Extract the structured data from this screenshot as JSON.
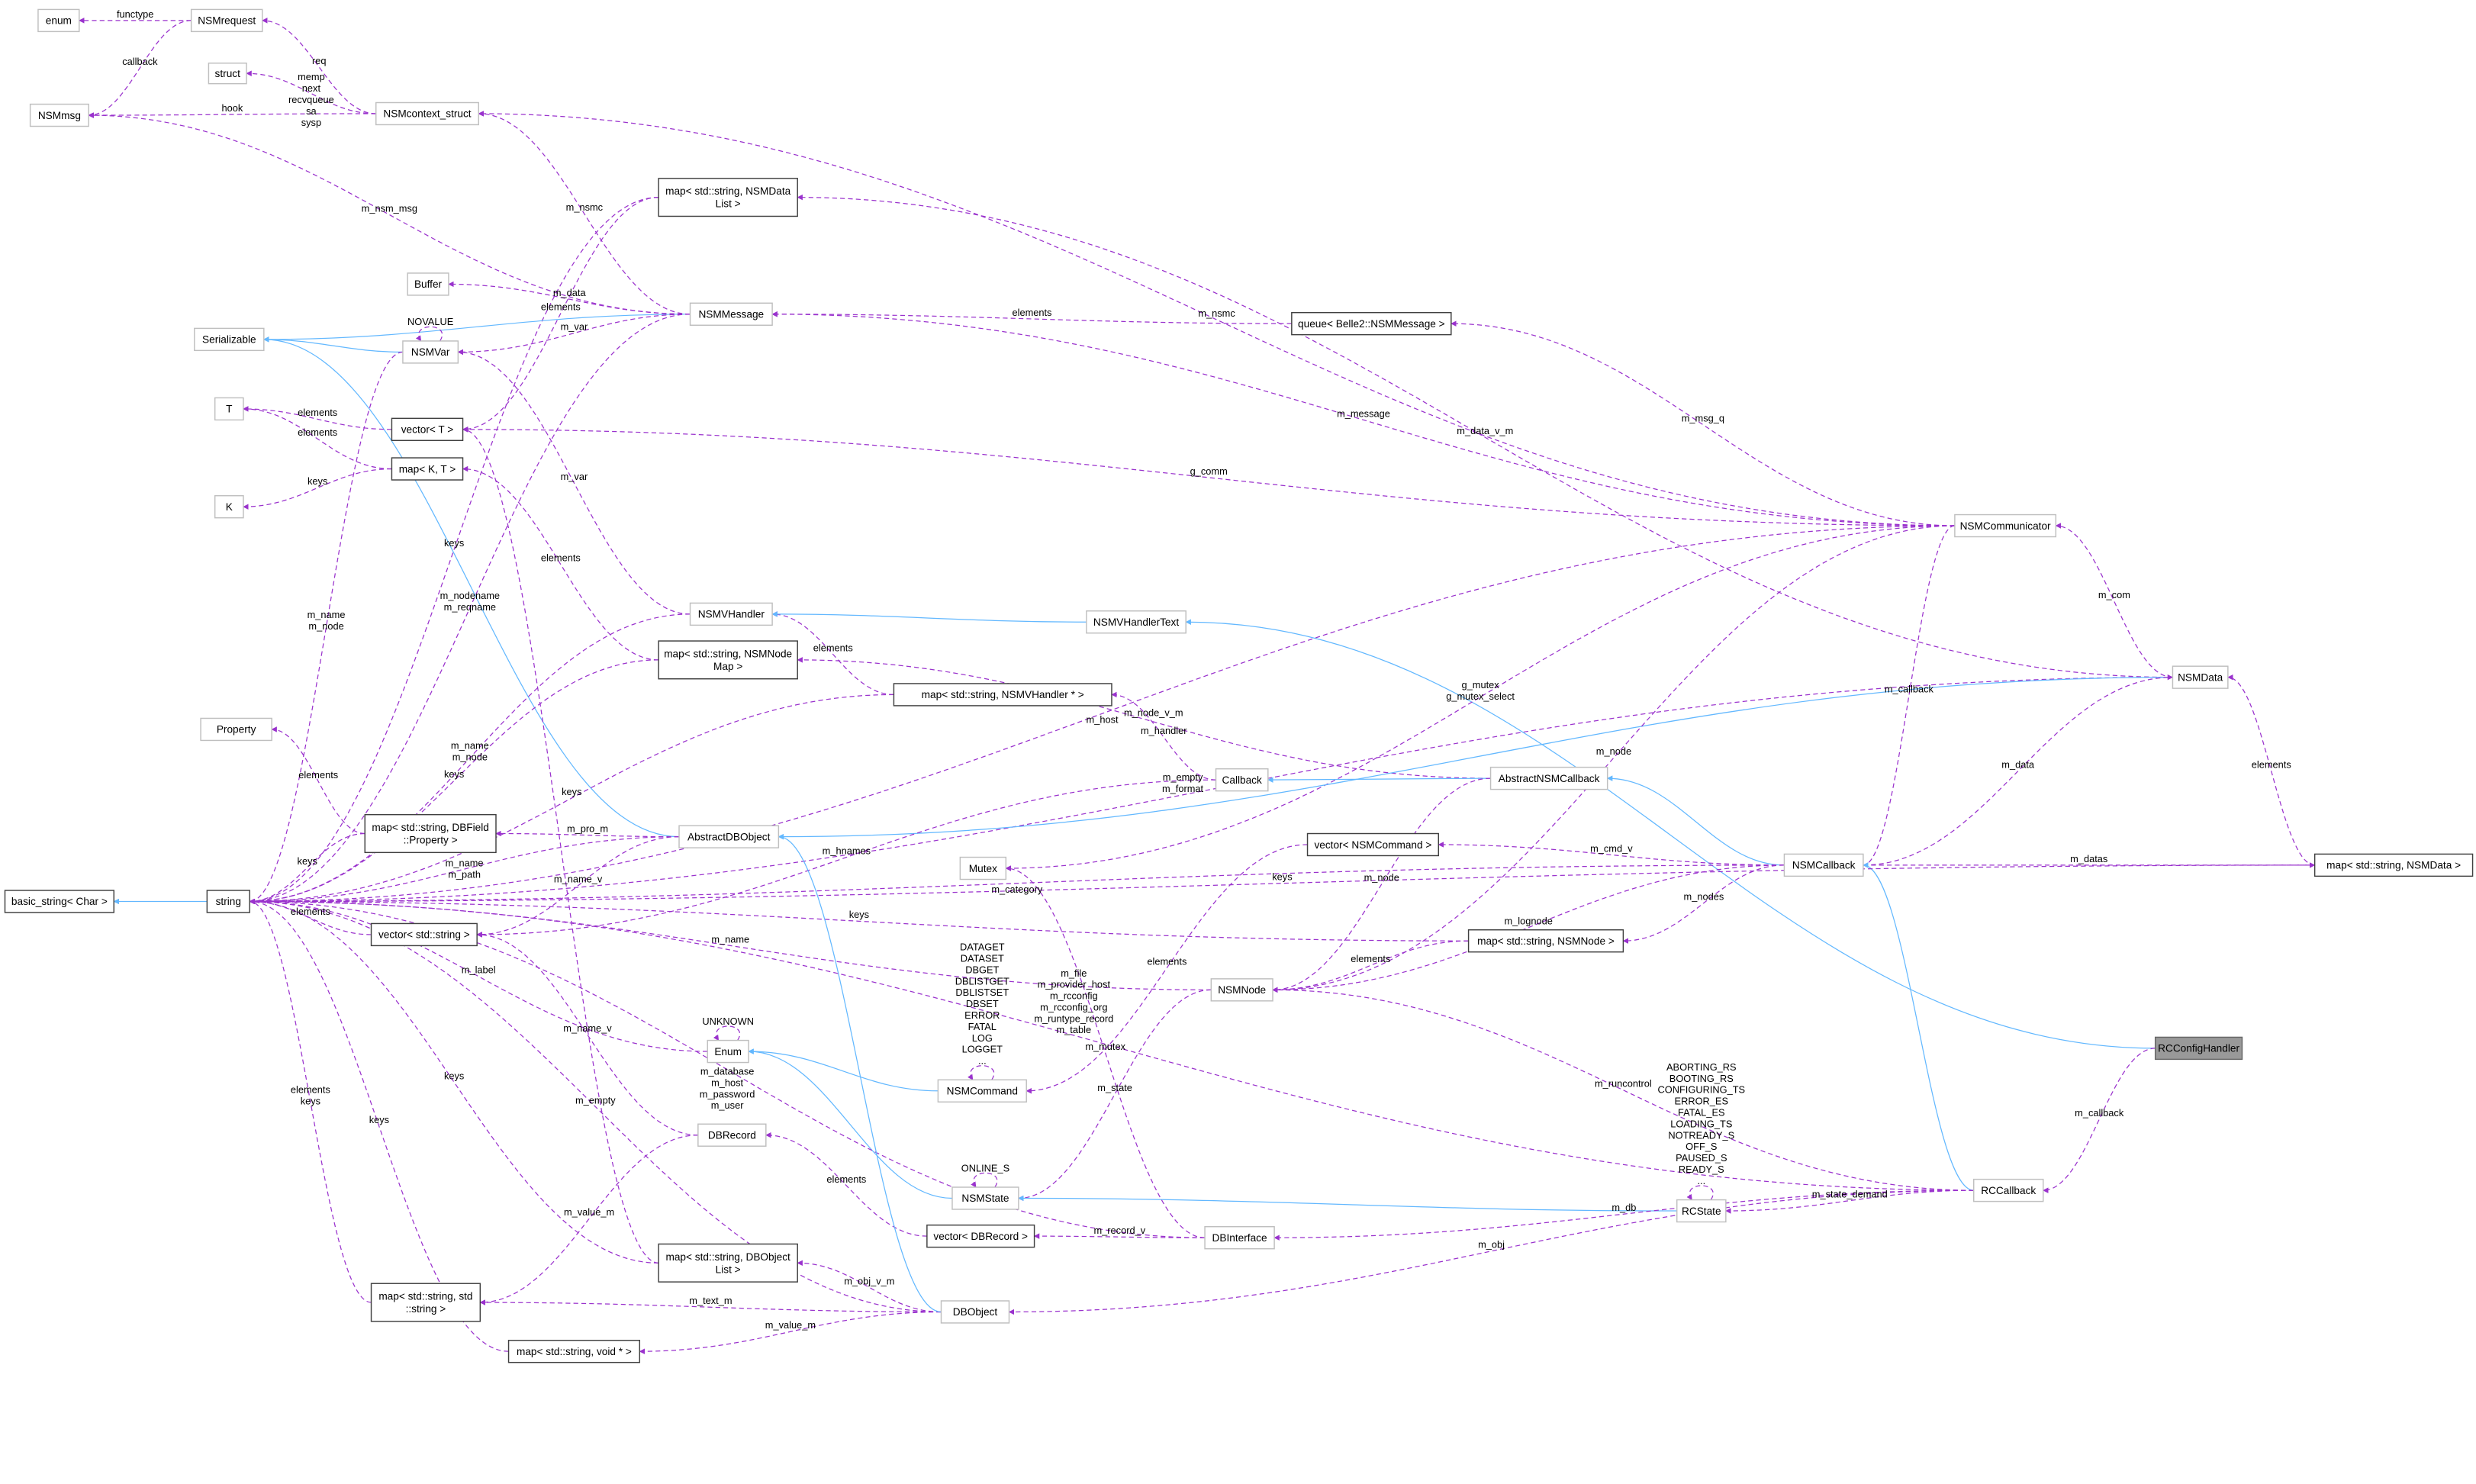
{
  "colors": {
    "usage": "#9a32cd",
    "inheritance": "#63b8ff",
    "root_fill": "#999999"
  },
  "nodes": [
    {
      "id": "enum",
      "label": "enum",
      "style": "gray"
    },
    {
      "id": "NSMrequest",
      "label": "NSMrequest",
      "style": "gray"
    },
    {
      "id": "struct",
      "label": "struct",
      "style": "gray"
    },
    {
      "id": "NSMmsg",
      "label": "NSMmsg",
      "style": "gray"
    },
    {
      "id": "NSMcontext_struct",
      "label": "NSMcontext_struct",
      "style": "gray"
    },
    {
      "id": "mapNSMDataList",
      "label": "map< std::string, NSMData\nList >",
      "style": "dark"
    },
    {
      "id": "Buffer",
      "label": "Buffer",
      "style": "gray"
    },
    {
      "id": "NSMMessage",
      "label": "NSMMessage",
      "style": "gray"
    },
    {
      "id": "Serializable",
      "label": "Serializable",
      "style": "gray"
    },
    {
      "id": "NSMVar",
      "label": "NSMVar",
      "style": "gray"
    },
    {
      "id": "T",
      "label": "T",
      "style": "gray"
    },
    {
      "id": "vectorT",
      "label": "vector< T >",
      "style": "dark"
    },
    {
      "id": "mapKT",
      "label": "map< K, T >",
      "style": "dark"
    },
    {
      "id": "K",
      "label": "K",
      "style": "gray"
    },
    {
      "id": "queue",
      "label": "queue< Belle2::NSMMessage >",
      "style": "dark"
    },
    {
      "id": "NSMCommunicator",
      "label": "NSMCommunicator",
      "style": "gray"
    },
    {
      "id": "NSMVHandler",
      "label": "NSMVHandler",
      "style": "gray"
    },
    {
      "id": "NSMVHandlerText",
      "label": "NSMVHandlerText",
      "style": "gray"
    },
    {
      "id": "mapNSMNodeMap",
      "label": "map< std::string, NSMNode\nMap >",
      "style": "dark"
    },
    {
      "id": "mapNSMVHandler",
      "label": "map< std::string, NSMVHandler * >",
      "style": "dark"
    },
    {
      "id": "Property",
      "label": "Property",
      "style": "gray"
    },
    {
      "id": "NSMData",
      "label": "NSMData",
      "style": "gray"
    },
    {
      "id": "Callback",
      "label": "Callback",
      "style": "gray"
    },
    {
      "id": "AbstractNSMCallback",
      "label": "AbstractNSMCallback",
      "style": "gray"
    },
    {
      "id": "mapDBField",
      "label": "map< std::string, DBField\n::Property >",
      "style": "dark"
    },
    {
      "id": "AbstractDBObject",
      "label": "AbstractDBObject",
      "style": "gray"
    },
    {
      "id": "basic_string",
      "label": "basic_string< Char >",
      "style": "dark"
    },
    {
      "id": "string",
      "label": "string",
      "style": "dark"
    },
    {
      "id": "vectorString",
      "label": "vector< std::string >",
      "style": "dark"
    },
    {
      "id": "vectorNSMCommand",
      "label": "vector< NSMCommand >",
      "style": "dark"
    },
    {
      "id": "Mutex",
      "label": "Mutex",
      "style": "gray"
    },
    {
      "id": "NSMCallback",
      "label": "NSMCallback",
      "style": "gray"
    },
    {
      "id": "mapNSMData",
      "label": "map< std::string, NSMData >",
      "style": "dark"
    },
    {
      "id": "mapNSMNode",
      "label": "map< std::string, NSMNode >",
      "style": "dark"
    },
    {
      "id": "NSMNode",
      "label": "NSMNode",
      "style": "gray"
    },
    {
      "id": "Enum",
      "label": "Enum",
      "style": "gray"
    },
    {
      "id": "NSMCommand",
      "label": "NSMCommand",
      "style": "gray"
    },
    {
      "id": "RCConfigHandler",
      "label": "RCConfigHandler",
      "style": "root"
    },
    {
      "id": "DBRecord",
      "label": "DBRecord",
      "style": "gray"
    },
    {
      "id": "NSMState",
      "label": "NSMState",
      "style": "gray"
    },
    {
      "id": "RCState",
      "label": "RCState",
      "style": "gray"
    },
    {
      "id": "RCCallback",
      "label": "RCCallback",
      "style": "gray"
    },
    {
      "id": "vectorDBRecord",
      "label": "vector< DBRecord >",
      "style": "dark"
    },
    {
      "id": "DBInterface",
      "label": "DBInterface",
      "style": "gray"
    },
    {
      "id": "mapDBObjectList",
      "label": "map< std::string, DBObject\nList >",
      "style": "dark"
    },
    {
      "id": "mapStringString",
      "label": "map< std::string, std\n::string >",
      "style": "dark"
    },
    {
      "id": "DBObject",
      "label": "DBObject",
      "style": "gray"
    },
    {
      "id": "mapVoid",
      "label": "map< std::string, void * >",
      "style": "dark"
    }
  ],
  "edges": [
    {
      "from": "NSMrequest",
      "to": "enum",
      "label": "functype",
      "kind": "usage"
    },
    {
      "from": "NSMrequest",
      "to": "NSMmsg",
      "label": "callback",
      "kind": "usage"
    },
    {
      "from": "NSMcontext_struct",
      "to": "NSMrequest",
      "label": "req",
      "kind": "usage"
    },
    {
      "from": "NSMcontext_struct",
      "to": "struct",
      "label": "memp\nnext\nrecvqueue\nsa\nsysp",
      "kind": "usage"
    },
    {
      "from": "NSMcontext_struct",
      "to": "NSMmsg",
      "label": "hook",
      "kind": "usage"
    },
    {
      "from": "NSMMessage",
      "to": "NSMmsg",
      "label": "m_nsm_msg",
      "kind": "usage"
    },
    {
      "from": "NSMMessage",
      "to": "NSMcontext_struct",
      "label": "m_nsmc",
      "kind": "usage"
    },
    {
      "from": "NSMCommunicator",
      "to": "NSMcontext_struct",
      "label": "m_nsmc",
      "kind": "usage"
    },
    {
      "from": "NSMData",
      "to": "mapNSMDataList",
      "label": "m_data_v_m",
      "kind": "usage"
    },
    {
      "from": "mapNSMDataList",
      "to": "string",
      "label": "keys",
      "kind": "usage"
    },
    {
      "from": "mapNSMDataList",
      "to": "vectorT",
      "label": "elements",
      "kind": "usage"
    },
    {
      "from": "NSMMessage",
      "to": "Serializable",
      "label": "",
      "kind": "inherit"
    },
    {
      "from": "NSMMessage",
      "to": "Buffer",
      "label": "m_data",
      "kind": "usage"
    },
    {
      "from": "NSMMessage",
      "to": "NSMVar",
      "label": "m_var",
      "kind": "usage"
    },
    {
      "from": "NSMVar",
      "to": "NSMVar",
      "label": "NOVALUE",
      "kind": "usage"
    },
    {
      "from": "NSMVar",
      "to": "Serializable",
      "label": "",
      "kind": "inherit"
    },
    {
      "from": "AbstractDBObject",
      "to": "Serializable",
      "label": "",
      "kind": "inherit"
    },
    {
      "from": "queue",
      "to": "NSMMessage",
      "label": "elements",
      "kind": "usage"
    },
    {
      "from": "NSMCommunicator",
      "to": "queue",
      "label": "m_msg_q",
      "kind": "usage"
    },
    {
      "from": "NSMCommunicator",
      "to": "NSMMessage",
      "label": "m_message",
      "kind": "usage"
    },
    {
      "from": "NSMCommunicator",
      "to": "vectorT",
      "label": "g_comm",
      "kind": "usage"
    },
    {
      "from": "vectorT",
      "to": "T",
      "label": "elements",
      "kind": "usage"
    },
    {
      "from": "mapKT",
      "to": "T",
      "label": "elements",
      "kind": "usage"
    },
    {
      "from": "mapKT",
      "to": "K",
      "label": "keys",
      "kind": "usage"
    },
    {
      "from": "NSMVar",
      "to": "string",
      "label": "m_name\nm_node",
      "kind": "usage"
    },
    {
      "from": "NSMMessage",
      "to": "string",
      "label": "m_nodename\nm_reqname",
      "kind": "usage"
    },
    {
      "from": "NSMVHandler",
      "to": "NSMVar",
      "label": "m_var",
      "kind": "usage"
    },
    {
      "from": "NSMCommunicator",
      "to": "string",
      "label": "m_host",
      "kind": "usage"
    },
    {
      "from": "NSMData",
      "to": "string",
      "label": "m_empty\nm_format",
      "kind": "usage"
    },
    {
      "from": "mapNSMNodeMap",
      "to": "mapKT",
      "label": "elements",
      "kind": "usage"
    },
    {
      "from": "NSMVHandler",
      "to": "string",
      "label": "m_name\nm_node",
      "kind": "usage"
    },
    {
      "from": "mapNSMNodeMap",
      "to": "string",
      "label": "keys",
      "kind": "usage"
    },
    {
      "from": "mapNSMVHandler",
      "to": "string",
      "label": "keys",
      "kind": "usage"
    },
    {
      "from": "mapNSMVHandler",
      "to": "NSMVHandler",
      "label": "elements",
      "kind": "usage"
    },
    {
      "from": "NSMVHandlerText",
      "to": "NSMVHandler",
      "label": "",
      "kind": "inherit"
    },
    {
      "from": "RCConfigHandler",
      "to": "NSMVHandlerText",
      "label": "",
      "kind": "inherit"
    },
    {
      "from": "AbstractNSMCallback",
      "to": "mapNSMNodeMap",
      "label": "m_node_v_m",
      "kind": "usage"
    },
    {
      "from": "NSMCommunicator",
      "to": "Mutex",
      "label": "g_mutex\ng_mutex_select",
      "kind": "usage"
    },
    {
      "from": "NSMCommunicator",
      "to": "NSMCallback",
      "label": "m_callback",
      "kind": "usage"
    },
    {
      "from": "NSMData",
      "to": "NSMCommunicator",
      "label": "m_com",
      "kind": "usage"
    },
    {
      "from": "NSMData",
      "to": "AbstractDBObject",
      "label": "",
      "kind": "inherit"
    },
    {
      "from": "Callback",
      "to": "mapNSMVHandler",
      "label": "m_handler",
      "kind": "usage"
    },
    {
      "from": "AbstractNSMCallback",
      "to": "Callback",
      "label": "",
      "kind": "inherit"
    },
    {
      "from": "NSMCallback",
      "to": "AbstractNSMCallback",
      "label": "",
      "kind": "inherit"
    },
    {
      "from": "NSMCallback",
      "to": "string",
      "label": "m_category",
      "kind": "usage"
    },
    {
      "from": "mapDBField",
      "to": "Property",
      "label": "elements",
      "kind": "usage"
    },
    {
      "from": "mapDBField",
      "to": "string",
      "label": "keys",
      "kind": "usage"
    },
    {
      "from": "AbstractDBObject",
      "to": "mapDBField",
      "label": "m_pro_m",
      "kind": "usage"
    },
    {
      "from": "AbstractDBObject",
      "to": "string",
      "label": "m_name\nm_path",
      "kind": "usage"
    },
    {
      "from": "AbstractDBObject",
      "to": "vectorString",
      "label": "m_name_v",
      "kind": "usage"
    },
    {
      "from": "vectorString",
      "to": "string",
      "label": "elements",
      "kind": "usage"
    },
    {
      "from": "Callback",
      "to": "vectorString",
      "label": "m_hnames",
      "kind": "usage"
    },
    {
      "from": "string",
      "to": "basic_string",
      "label": "",
      "kind": "inherit"
    },
    {
      "from": "vectorNSMCommand",
      "to": "NSMCommand",
      "label": "elements",
      "kind": "usage"
    },
    {
      "from": "NSMCallback",
      "to": "vectorNSMCommand",
      "label": "m_cmd_v",
      "kind": "usage"
    },
    {
      "from": "AbstractNSMCallback",
      "to": "NSMNode",
      "label": "m_node",
      "kind": "usage"
    },
    {
      "from": "NSMCommunicator",
      "to": "NSMNode",
      "label": "m_node",
      "kind": "usage"
    },
    {
      "from": "NSMCallback",
      "to": "NSMData",
      "label": "m_data",
      "kind": "usage"
    },
    {
      "from": "NSMCallback",
      "to": "mapNSMData",
      "label": "m_datas",
      "kind": "usage"
    },
    {
      "from": "mapNSMData",
      "to": "NSMData",
      "label": "elements",
      "kind": "usage"
    },
    {
      "from": "NSMCallback",
      "to": "mapNSMNode",
      "label": "m_nodes",
      "kind": "usage"
    },
    {
      "from": "mapNSMNode",
      "to": "string",
      "label": "keys",
      "kind": "usage"
    },
    {
      "from": "mapNSMNode",
      "to": "NSMNode",
      "label": "elements",
      "kind": "usage"
    },
    {
      "from": "NSMCallback",
      "to": "NSMNode",
      "label": "m_lognode",
      "kind": "usage"
    },
    {
      "from": "RCCallback",
      "to": "NSMNode",
      "label": "m_runcontrol",
      "kind": "usage"
    },
    {
      "from": "NSMNode",
      "to": "string",
      "label": "m_name",
      "kind": "usage"
    },
    {
      "from": "NSMNode",
      "to": "NSMState",
      "label": "m_state",
      "kind": "usage"
    },
    {
      "from": "Enum",
      "to": "string",
      "label": "m_label",
      "kind": "usage"
    },
    {
      "from": "Enum",
      "to": "Enum",
      "label": "UNKNOWN",
      "kind": "usage"
    },
    {
      "from": "NSMCommand",
      "to": "Enum",
      "label": "",
      "kind": "inherit"
    },
    {
      "from": "NSMCommand",
      "to": "NSMCommand",
      "label": "DATAGET\nDATASET\nDBGET\nDBLISTGET\nDBLISTSET\nDBSET\nERROR\nFATAL\nLOG\nLOGGET\n...",
      "kind": "usage"
    },
    {
      "from": "NSMState",
      "to": "Enum",
      "label": "",
      "kind": "inherit"
    },
    {
      "from": "NSMState",
      "to": "NSMState",
      "label": "ONLINE_S",
      "kind": "usage"
    },
    {
      "from": "RCState",
      "to": "NSMState",
      "label": "",
      "kind": "inherit"
    },
    {
      "from": "RCState",
      "to": "RCState",
      "label": "ABORTING_RS\nBOOTING_RS\nCONFIGURING_TS\nERROR_ES\nFATAL_ES\nLOADING_TS\nNOTREADY_S\nOFF_S\nPAUSED_S\nREADY_S\n...",
      "kind": "usage"
    },
    {
      "from": "RCCallback",
      "to": "NSMCallback",
      "label": "",
      "kind": "inherit"
    },
    {
      "from": "RCConfigHandler",
      "to": "RCCallback",
      "label": "m_callback",
      "kind": "usage"
    },
    {
      "from": "RCCallback",
      "to": "RCState",
      "label": "m_state_demand",
      "kind": "usage"
    },
    {
      "from": "RCCallback",
      "to": "DBInterface",
      "label": "m_db",
      "kind": "usage"
    },
    {
      "from": "DBInterface",
      "to": "Mutex",
      "label": "m_mutex",
      "kind": "usage"
    },
    {
      "from": "DBInterface",
      "to": "vectorDBRecord",
      "label": "m_record_v",
      "kind": "usage"
    },
    {
      "from": "vectorDBRecord",
      "to": "DBRecord",
      "label": "elements",
      "kind": "usage"
    },
    {
      "from": "DBInterface",
      "to": "string",
      "label": "m_database\nm_host\nm_password\nm_user",
      "kind": "usage"
    },
    {
      "from": "DBRecord",
      "to": "vectorString",
      "label": "m_name_v",
      "kind": "usage"
    },
    {
      "from": "DBRecord",
      "to": "mapStringString",
      "label": "m_value_m",
      "kind": "usage"
    },
    {
      "from": "mapDBObjectList",
      "to": "string",
      "label": "keys",
      "kind": "usage"
    },
    {
      "from": "mapDBObjectList",
      "to": "vectorT",
      "label": "",
      "kind": "usage"
    },
    {
      "from": "DBObject",
      "to": "mapDBObjectList",
      "label": "m_obj_v_m",
      "kind": "usage"
    },
    {
      "from": "DBObject",
      "to": "mapStringString",
      "label": "m_text_m",
      "kind": "usage"
    },
    {
      "from": "DBObject",
      "to": "mapVoid",
      "label": "m_value_m",
      "kind": "usage"
    },
    {
      "from": "DBObject",
      "to": "string",
      "label": "m_empty",
      "kind": "usage"
    },
    {
      "from": "DBObject",
      "to": "AbstractDBObject",
      "label": "",
      "kind": "inherit"
    },
    {
      "from": "mapStringString",
      "to": "string",
      "label": "elements\nkeys",
      "kind": "usage"
    },
    {
      "from": "mapVoid",
      "to": "string",
      "label": "keys",
      "kind": "usage"
    },
    {
      "from": "RCCallback",
      "to": "DBObject",
      "label": "m_obj",
      "kind": "usage"
    },
    {
      "from": "RCCallback",
      "to": "string",
      "label": "m_file\nm_provider_host\nm_rcconfig\nm_rcconfig_org\nm_runtype_record\nm_table",
      "kind": "usage"
    },
    {
      "from": "mapNSMData",
      "to": "string",
      "label": "keys",
      "kind": "usage"
    }
  ]
}
